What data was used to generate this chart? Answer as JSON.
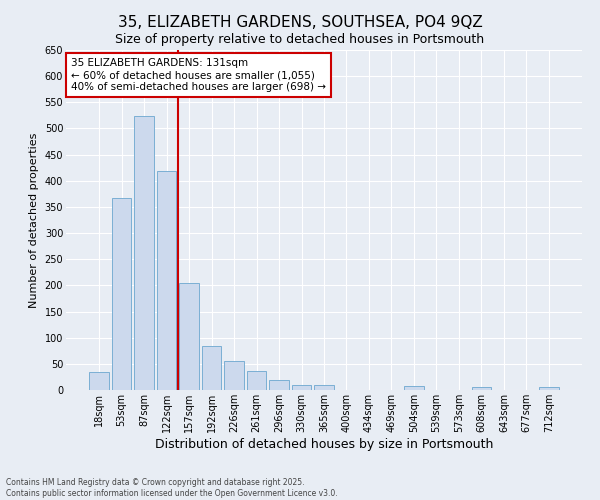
{
  "title": "35, ELIZABETH GARDENS, SOUTHSEA, PO4 9QZ",
  "subtitle": "Size of property relative to detached houses in Portsmouth",
  "xlabel": "Distribution of detached houses by size in Portsmouth",
  "ylabel": "Number of detached properties",
  "categories": [
    "18sqm",
    "53sqm",
    "87sqm",
    "122sqm",
    "157sqm",
    "192sqm",
    "226sqm",
    "261sqm",
    "296sqm",
    "330sqm",
    "365sqm",
    "400sqm",
    "434sqm",
    "469sqm",
    "504sqm",
    "539sqm",
    "573sqm",
    "608sqm",
    "643sqm",
    "677sqm",
    "712sqm"
  ],
  "values": [
    35,
    367,
    524,
    418,
    205,
    84,
    55,
    36,
    20,
    10,
    10,
    0,
    0,
    0,
    7,
    0,
    0,
    5,
    0,
    0,
    5
  ],
  "bar_color": "#ccd9ed",
  "bar_edge_color": "#7bafd4",
  "vline_x": 3.5,
  "vline_color": "#cc0000",
  "annotation_title": "35 ELIZABETH GARDENS: 131sqm",
  "annotation_line1": "← 60% of detached houses are smaller (1,055)",
  "annotation_line2": "40% of semi-detached houses are larger (698) →",
  "annotation_box_color": "#ffffff",
  "annotation_box_edge_color": "#cc0000",
  "ylim": [
    0,
    650
  ],
  "yticks": [
    0,
    50,
    100,
    150,
    200,
    250,
    300,
    350,
    400,
    450,
    500,
    550,
    600,
    650
  ],
  "background_color": "#e8edf4",
  "plot_background_color": "#e8edf4",
  "grid_color": "#ffffff",
  "title_fontsize": 11,
  "subtitle_fontsize": 9,
  "xlabel_fontsize": 9,
  "ylabel_fontsize": 8,
  "tick_fontsize": 7,
  "footnote_line1": "Contains HM Land Registry data © Crown copyright and database right 2025.",
  "footnote_line2": "Contains public sector information licensed under the Open Government Licence v3.0."
}
